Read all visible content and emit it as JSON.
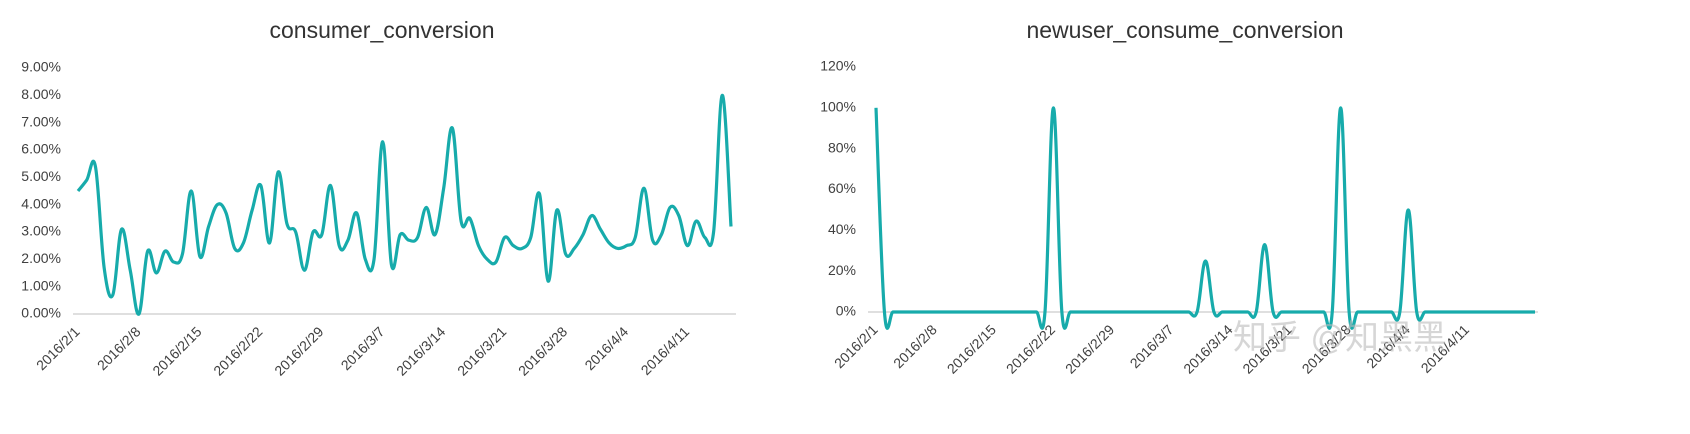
{
  "chart_data": [
    {
      "type": "line",
      "title": "consumer_conversion",
      "color": "#17abab",
      "categories": [
        "2016/2/1",
        null,
        null,
        null,
        null,
        null,
        null,
        "2016/2/8",
        null,
        null,
        null,
        null,
        null,
        null,
        "2016/2/15",
        null,
        null,
        null,
        null,
        null,
        null,
        "2016/2/22",
        null,
        null,
        null,
        null,
        null,
        null,
        "2016/2/29",
        null,
        null,
        null,
        null,
        null,
        null,
        "2016/3/7",
        null,
        null,
        null,
        null,
        null,
        null,
        "2016/3/14",
        null,
        null,
        null,
        null,
        null,
        null,
        "2016/3/21",
        null,
        null,
        null,
        null,
        null,
        null,
        "2016/3/28",
        null,
        null,
        null,
        null,
        null,
        null,
        "2016/4/4",
        null,
        null,
        null,
        null,
        null,
        null,
        "2016/4/11",
        null,
        null,
        null,
        null,
        null
      ],
      "series": [
        {
          "values": [
            4.5,
            4.9,
            5.4,
            1.7,
            0.7,
            3.1,
            1.6,
            0.0,
            2.3,
            1.5,
            2.3,
            1.9,
            2.2,
            4.5,
            2.1,
            3.2,
            4.0,
            3.7,
            2.4,
            2.6,
            3.8,
            4.7,
            2.6,
            5.2,
            3.3,
            3.0,
            1.6,
            3.0,
            2.9,
            4.7,
            2.5,
            2.7,
            3.7,
            2.0,
            2.0,
            6.3,
            1.8,
            2.9,
            2.7,
            2.8,
            3.9,
            2.9,
            4.6,
            6.8,
            3.4,
            3.5,
            2.5,
            2.0,
            1.9,
            2.8,
            2.5,
            2.4,
            2.8,
            4.4,
            1.2,
            3.8,
            2.2,
            2.4,
            2.9,
            3.6,
            3.1,
            2.6,
            2.4,
            2.5,
            2.8,
            4.6,
            2.7,
            2.9,
            3.9,
            3.6,
            2.5,
            3.4,
            2.8,
            3.0,
            8.0,
            3.2
          ]
        }
      ],
      "ylim": [
        0,
        9
      ],
      "yticks": [
        {
          "value": 0,
          "label": "0.00%"
        },
        {
          "value": 1,
          "label": "1.00%"
        },
        {
          "value": 2,
          "label": "2.00%"
        },
        {
          "value": 3,
          "label": "3.00%"
        },
        {
          "value": 4,
          "label": "4.00%"
        },
        {
          "value": 5,
          "label": "5.00%"
        },
        {
          "value": 6,
          "label": "6.00%"
        },
        {
          "value": 7,
          "label": "7.00%"
        },
        {
          "value": 8,
          "label": "8.00%"
        },
        {
          "value": 9,
          "label": "9.00%"
        }
      ]
    },
    {
      "type": "line",
      "title": "newuser_consume_conversion",
      "color": "#17abab",
      "categories": [
        "2016/2/1",
        null,
        null,
        null,
        null,
        null,
        null,
        "2016/2/8",
        null,
        null,
        null,
        null,
        null,
        null,
        "2016/2/15",
        null,
        null,
        null,
        null,
        null,
        null,
        "2016/2/22",
        null,
        null,
        null,
        null,
        null,
        null,
        "2016/2/29",
        null,
        null,
        null,
        null,
        null,
        null,
        "2016/3/7",
        null,
        null,
        null,
        null,
        null,
        null,
        "2016/3/14",
        null,
        null,
        null,
        null,
        null,
        null,
        "2016/3/21",
        null,
        null,
        null,
        null,
        null,
        null,
        "2016/3/28",
        null,
        null,
        null,
        null,
        null,
        null,
        "2016/4/4",
        null,
        null,
        null,
        null,
        null,
        null,
        "2016/4/11",
        null,
        null,
        null,
        null,
        null,
        null,
        null,
        null
      ],
      "series": [
        {
          "values": [
            100,
            0,
            0,
            0,
            0,
            0,
            0,
            0,
            0,
            0,
            0,
            0,
            0,
            0,
            0,
            0,
            0,
            0,
            0,
            0,
            0,
            100,
            0,
            0,
            0,
            0,
            0,
            0,
            0,
            0,
            0,
            0,
            0,
            0,
            0,
            0,
            0,
            0,
            0,
            25,
            0,
            0,
            0,
            0,
            0,
            0,
            33,
            0,
            0,
            0,
            0,
            0,
            0,
            0,
            0,
            100,
            0,
            0,
            0,
            0,
            0,
            0,
            0,
            50,
            0,
            0,
            0,
            0,
            0,
            0,
            0,
            0,
            0,
            0,
            0,
            0,
            0,
            0,
            0
          ]
        }
      ],
      "ylim": [
        0,
        120
      ],
      "yticks": [
        {
          "value": 0,
          "label": "0%"
        },
        {
          "value": 20,
          "label": "20%"
        },
        {
          "value": 40,
          "label": "40%"
        },
        {
          "value": 60,
          "label": "60%"
        },
        {
          "value": 80,
          "label": "80%"
        },
        {
          "value": 100,
          "label": "100%"
        },
        {
          "value": 120,
          "label": "120%"
        }
      ]
    }
  ],
  "watermark": "知乎 @知黑黑"
}
